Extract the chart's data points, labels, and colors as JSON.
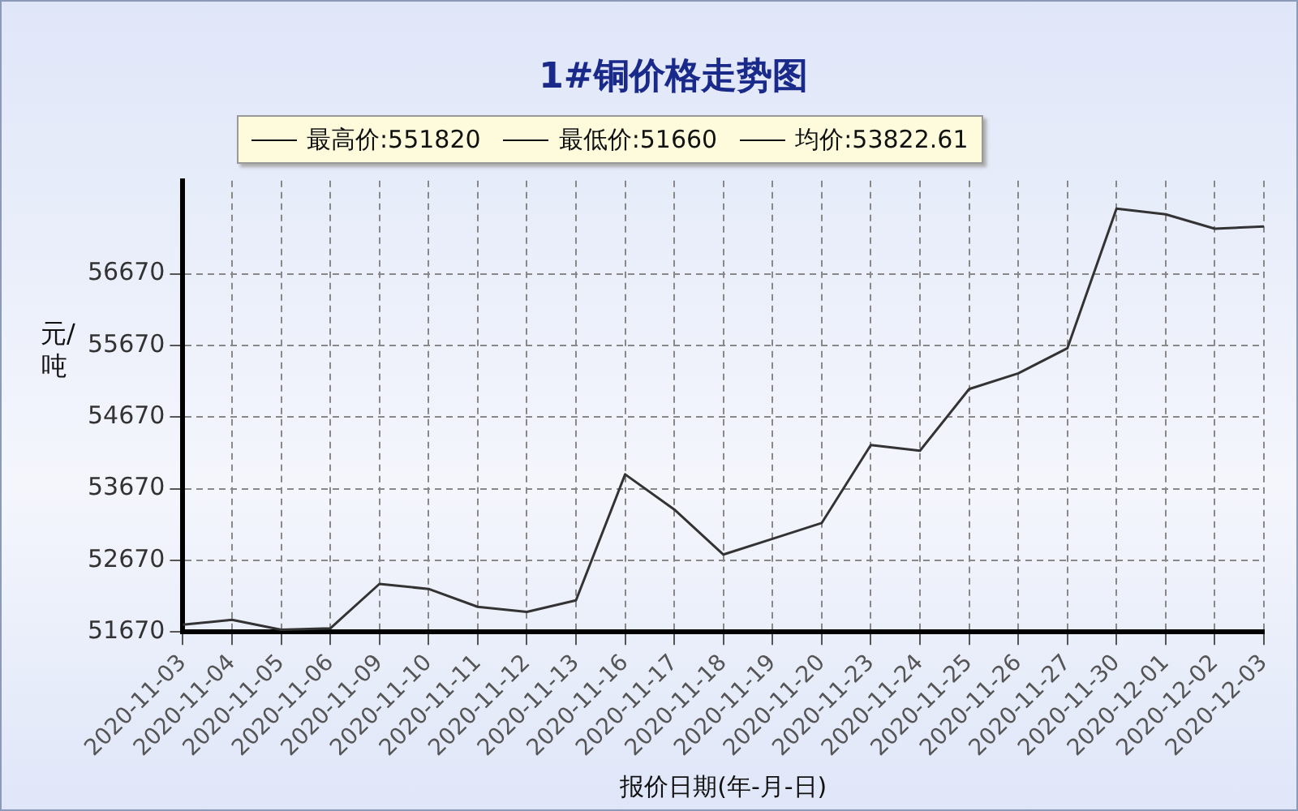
{
  "chart_data": {
    "type": "line",
    "title": "1#铜价格走势图",
    "xlabel": "报价日期(年-月-日)",
    "ylabel": "元/吨",
    "annotations": [
      "最高价:551820",
      "最低价:51660",
      "均价:53822.61"
    ],
    "categories": [
      "2020-11-03",
      "2020-11-04",
      "2020-11-05",
      "2020-11-06",
      "2020-11-09",
      "2020-11-10",
      "2020-11-11",
      "2020-11-12",
      "2020-11-13",
      "2020-11-16",
      "2020-11-17",
      "2020-11-18",
      "2020-11-19",
      "2020-11-20",
      "2020-11-23",
      "2020-11-24",
      "2020-11-25",
      "2020-11-26",
      "2020-11-27",
      "2020-11-30",
      "2020-12-01",
      "2020-12-02",
      "2020-12-03"
    ],
    "series": [
      {
        "color": "#333333",
        "values": [
          51770,
          51840,
          51700,
          51720,
          52340,
          52270,
          52020,
          51950,
          52110,
          53870,
          53380,
          52750,
          52970,
          53190,
          54280,
          54200,
          55060,
          55280,
          55630,
          57580,
          57500,
          57300,
          57330
        ]
      }
    ],
    "ylim": [
      51670,
      57970
    ],
    "yticks": [
      51670,
      52670,
      53670,
      54670,
      55670,
      56670
    ],
    "grid": true,
    "legend": false,
    "marker": "none",
    "line_style": "solid"
  }
}
